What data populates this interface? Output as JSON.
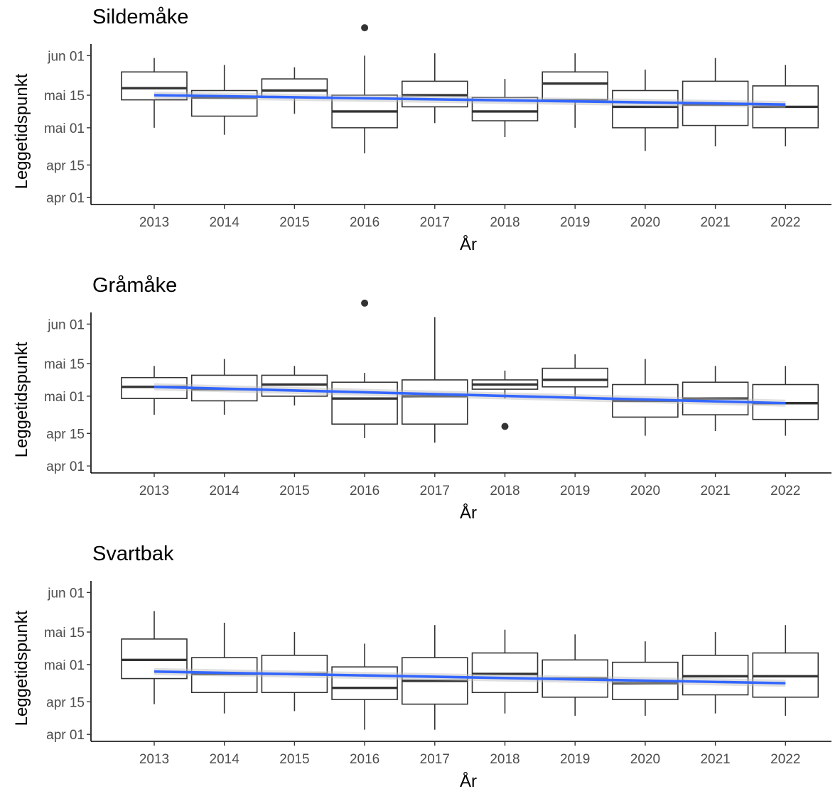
{
  "chart_data": [
    {
      "type": "box",
      "title": "Sildemåke",
      "xlabel": "År",
      "ylabel": "Leggetidspunkt",
      "y_ticks": [
        {
          "label": "apr 01",
          "day": 91
        },
        {
          "label": "apr 15",
          "day": 105
        },
        {
          "label": "mai 01",
          "day": 121
        },
        {
          "label": "mai 15",
          "day": 135
        },
        {
          "label": "jun 01",
          "day": 152
        }
      ],
      "ylim_day": [
        88,
        157
      ],
      "categories": [
        "2013",
        "2014",
        "2015",
        "2016",
        "2017",
        "2018",
        "2019",
        "2020",
        "2021",
        "2022"
      ],
      "boxes": [
        {
          "year": "2013",
          "whisker_low": 121,
          "q1": 133,
          "median": 138,
          "q3": 145,
          "whisker_high": 151,
          "outliers": []
        },
        {
          "year": "2014",
          "whisker_low": 118,
          "q1": 126,
          "median": 134,
          "q3": 137,
          "whisker_high": 148,
          "outliers": []
        },
        {
          "year": "2015",
          "whisker_low": 127,
          "q1": 134,
          "median": 137,
          "q3": 142,
          "whisker_high": 147,
          "outliers": []
        },
        {
          "year": "2016",
          "whisker_low": 110,
          "q1": 121,
          "median": 128,
          "q3": 135,
          "whisker_high": 152,
          "outliers": [
            164
          ]
        },
        {
          "year": "2017",
          "whisker_low": 123,
          "q1": 130,
          "median": 135,
          "q3": 141,
          "whisker_high": 153,
          "outliers": []
        },
        {
          "year": "2018",
          "whisker_low": 117,
          "q1": 124,
          "median": 128,
          "q3": 134,
          "whisker_high": 142,
          "outliers": []
        },
        {
          "year": "2019",
          "whisker_low": 121,
          "q1": 133,
          "median": 140,
          "q3": 145,
          "whisker_high": 153,
          "outliers": []
        },
        {
          "year": "2020",
          "whisker_low": 111,
          "q1": 121,
          "median": 130,
          "q3": 137,
          "whisker_high": 146,
          "outliers": []
        },
        {
          "year": "2021",
          "whisker_low": 113,
          "q1": 122,
          "median": 131,
          "q3": 141,
          "whisker_high": 151,
          "outliers": []
        },
        {
          "year": "2022",
          "whisker_low": 113,
          "q1": 121,
          "median": 130,
          "q3": 139,
          "whisker_high": 148,
          "outliers": []
        }
      ],
      "trend": {
        "start_day": 135,
        "end_day": 131,
        "color": "#3366ff"
      }
    },
    {
      "type": "box",
      "title": "Gråmåke",
      "xlabel": "År",
      "ylabel": "Leggetidspunkt",
      "y_ticks": [
        {
          "label": "apr 01",
          "day": 91
        },
        {
          "label": "apr 15",
          "day": 105
        },
        {
          "label": "mai 01",
          "day": 121
        },
        {
          "label": "mai 15",
          "day": 135
        },
        {
          "label": "jun 01",
          "day": 152
        }
      ],
      "ylim_day": [
        88,
        157
      ],
      "categories": [
        "2013",
        "2014",
        "2015",
        "2016",
        "2017",
        "2018",
        "2019",
        "2020",
        "2021",
        "2022"
      ],
      "boxes": [
        {
          "year": "2013",
          "whisker_low": 113,
          "q1": 120,
          "median": 125,
          "q3": 129,
          "whisker_high": 134,
          "outliers": []
        },
        {
          "year": "2014",
          "whisker_low": 113,
          "q1": 119,
          "median": 124,
          "q3": 130,
          "whisker_high": 137,
          "outliers": []
        },
        {
          "year": "2015",
          "whisker_low": 117,
          "q1": 121,
          "median": 126,
          "q3": 130,
          "whisker_high": 134,
          "outliers": []
        },
        {
          "year": "2016",
          "whisker_low": 103,
          "q1": 109,
          "median": 120,
          "q3": 127,
          "whisker_high": 131,
          "outliers": [
            161
          ]
        },
        {
          "year": "2017",
          "whisker_low": 101,
          "q1": 109,
          "median": 121,
          "q3": 128,
          "whisker_high": 155,
          "outliers": []
        },
        {
          "year": "2018",
          "whisker_low": 120,
          "q1": 124,
          "median": 126,
          "q3": 128,
          "whisker_high": 132,
          "outliers": [
            108
          ]
        },
        {
          "year": "2019",
          "whisker_low": 120,
          "q1": 125,
          "median": 128,
          "q3": 133,
          "whisker_high": 139,
          "outliers": []
        },
        {
          "year": "2020",
          "whisker_low": 104,
          "q1": 112,
          "median": 119,
          "q3": 126,
          "whisker_high": 137,
          "outliers": []
        },
        {
          "year": "2021",
          "whisker_low": 106,
          "q1": 113,
          "median": 120,
          "q3": 127,
          "whisker_high": 134,
          "outliers": []
        },
        {
          "year": "2022",
          "whisker_low": 104,
          "q1": 111,
          "median": 118,
          "q3": 126,
          "whisker_high": 134,
          "outliers": []
        }
      ],
      "trend": {
        "start_day": 125,
        "end_day": 118,
        "color": "#3366ff"
      }
    },
    {
      "type": "box",
      "title": "Svartbak",
      "xlabel": "År",
      "ylabel": "Leggetidspunkt",
      "y_ticks": [
        {
          "label": "apr 01",
          "day": 91
        },
        {
          "label": "apr 15",
          "day": 105
        },
        {
          "label": "mai 01",
          "day": 121
        },
        {
          "label": "mai 15",
          "day": 135
        },
        {
          "label": "jun 01",
          "day": 152
        }
      ],
      "ylim_day": [
        88,
        157
      ],
      "categories": [
        "2013",
        "2014",
        "2015",
        "2016",
        "2017",
        "2018",
        "2019",
        "2020",
        "2021",
        "2022"
      ],
      "boxes": [
        {
          "year": "2013",
          "whisker_low": 104,
          "q1": 115,
          "median": 123,
          "q3": 132,
          "whisker_high": 144,
          "outliers": []
        },
        {
          "year": "2014",
          "whisker_low": 100,
          "q1": 109,
          "median": 117,
          "q3": 124,
          "whisker_high": 139,
          "outliers": []
        },
        {
          "year": "2015",
          "whisker_low": 101,
          "q1": 109,
          "median": 117,
          "q3": 125,
          "whisker_high": 135,
          "outliers": []
        },
        {
          "year": "2016",
          "whisker_low": 93,
          "q1": 106,
          "median": 111,
          "q3": 120,
          "whisker_high": 130,
          "outliers": []
        },
        {
          "year": "2017",
          "whisker_low": 93,
          "q1": 104,
          "median": 114,
          "q3": 124,
          "whisker_high": 138,
          "outliers": []
        },
        {
          "year": "2018",
          "whisker_low": 100,
          "q1": 109,
          "median": 117,
          "q3": 126,
          "whisker_high": 136,
          "outliers": []
        },
        {
          "year": "2019",
          "whisker_low": 99,
          "q1": 107,
          "median": 115,
          "q3": 123,
          "whisker_high": 134,
          "outliers": []
        },
        {
          "year": "2020",
          "whisker_low": 99,
          "q1": 106,
          "median": 113,
          "q3": 122,
          "whisker_high": 131,
          "outliers": []
        },
        {
          "year": "2021",
          "whisker_low": 100,
          "q1": 108,
          "median": 116,
          "q3": 125,
          "whisker_high": 135,
          "outliers": []
        },
        {
          "year": "2022",
          "whisker_low": 99,
          "q1": 107,
          "median": 116,
          "q3": 126,
          "whisker_high": 138,
          "outliers": []
        }
      ],
      "trend": {
        "start_day": 118,
        "end_day": 113,
        "color": "#3366ff"
      }
    }
  ]
}
